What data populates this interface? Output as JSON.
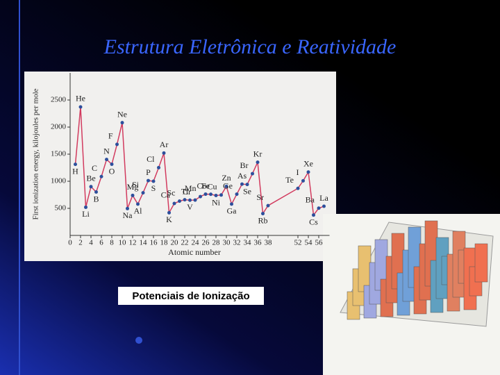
{
  "slide": {
    "title": "Estrutura Eletrônica e Reatividade",
    "caption": "Potenciais de Ionização"
  },
  "chart_data": {
    "type": "line",
    "y_label": "First ionization energy, kilojoules per mole",
    "x_label": "Atomic number",
    "x": [
      1,
      2,
      3,
      4,
      5,
      6,
      7,
      8,
      9,
      10,
      11,
      12,
      13,
      14,
      15,
      16,
      17,
      18,
      19,
      20,
      21,
      22,
      23,
      24,
      25,
      26,
      27,
      28,
      29,
      30,
      31,
      32,
      33,
      34,
      35,
      36,
      37,
      38,
      52,
      53,
      54,
      55,
      56,
      57
    ],
    "values": [
      1312,
      2372,
      520,
      900,
      801,
      1086,
      1402,
      1314,
      1681,
      2081,
      496,
      738,
      578,
      787,
      1012,
      1000,
      1251,
      1521,
      419,
      590,
      633,
      659,
      651,
      653,
      717,
      762,
      760,
      737,
      746,
      906,
      579,
      762,
      947,
      941,
      1140,
      1351,
      403,
      550,
      869,
      1008,
      1170,
      376,
      503,
      538
    ],
    "point_labels": [
      "H",
      "He",
      "Li",
      "Be",
      "B",
      "C",
      "N",
      "O",
      "F",
      "Ne",
      "Na",
      "Mg",
      "Al",
      "Si",
      "P",
      "S",
      "Cl",
      "Ar",
      "K",
      "Ca",
      "Sc",
      "Ti",
      "V",
      "Cr",
      "Mn",
      "Fe",
      "Co",
      "Ni",
      "Cu",
      "Zn",
      "Ga",
      "Ge",
      "As",
      "Se",
      "Br",
      "Kr",
      "Rb",
      "Sr",
      "Te",
      "I",
      "Xe",
      "Cs",
      "Ba",
      "La"
    ],
    "line_color": "#d23a5e",
    "marker_color": "#2d4f9c",
    "ylim": [
      0,
      3000
    ],
    "yticks": [
      500,
      1000,
      1500,
      2000,
      2500
    ],
    "xticks": [
      0,
      2,
      4,
      6,
      8,
      10,
      12,
      14,
      16,
      18,
      20,
      22,
      24,
      26,
      28,
      30,
      32,
      34,
      36,
      38,
      52,
      54,
      56
    ]
  }
}
